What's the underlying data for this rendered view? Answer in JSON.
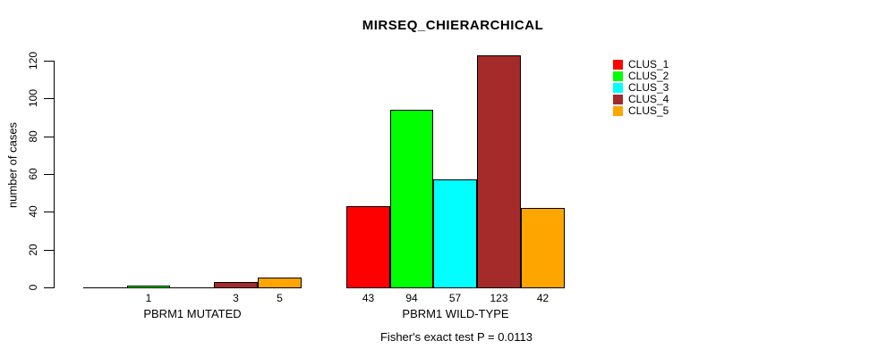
{
  "chart_data": {
    "type": "bar",
    "grouped": true,
    "title": "MIRSEQ_CHIERARCHICAL",
    "ylabel": "number of cases",
    "xlabel": "",
    "annotation": "Fisher's exact test P = 0.0113",
    "categories": [
      "PBRM1 MUTATED",
      "PBRM1 WILD-TYPE"
    ],
    "series": [
      {
        "name": "CLUS_1",
        "color": "#FF0000",
        "values": [
          0,
          43
        ]
      },
      {
        "name": "CLUS_2",
        "color": "#00FF00",
        "values": [
          1,
          94
        ]
      },
      {
        "name": "CLUS_3",
        "color": "#00FFFF",
        "values": [
          0,
          57
        ]
      },
      {
        "name": "CLUS_4",
        "color": "#A52A2A",
        "values": [
          3,
          123
        ]
      },
      {
        "name": "CLUS_5",
        "color": "#FFA500",
        "values": [
          5,
          42
        ]
      }
    ],
    "bar_value_labels": [
      [
        "",
        "1",
        "",
        "3",
        "5"
      ],
      [
        "43",
        "94",
        "57",
        "123",
        "42"
      ]
    ],
    "yticks": [
      0,
      20,
      40,
      60,
      80,
      100,
      120
    ],
    "ylim": [
      0,
      123
    ],
    "grid": false,
    "legend_position": "right",
    "background_color": "#FFFFFF",
    "axis_color": "#000000"
  }
}
